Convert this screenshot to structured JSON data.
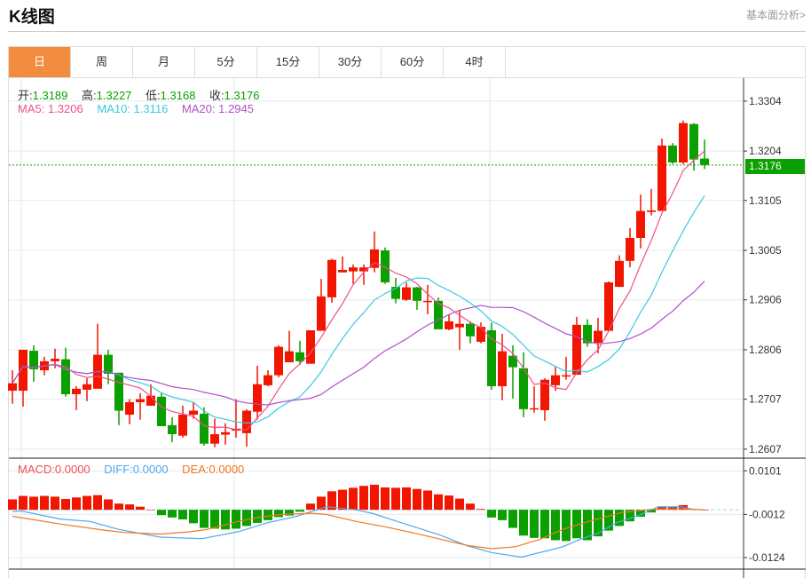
{
  "header": {
    "title": "K线图",
    "more_link": "基本面分析>"
  },
  "tabs": [
    {
      "label": "日",
      "active": true
    },
    {
      "label": "周",
      "active": false
    },
    {
      "label": "月",
      "active": false
    },
    {
      "label": "5分",
      "active": false
    },
    {
      "label": "15分",
      "active": false
    },
    {
      "label": "30分",
      "active": false
    },
    {
      "label": "60分",
      "active": false
    },
    {
      "label": "4时",
      "active": false
    }
  ],
  "ohlc_legend": {
    "open_label": "开:",
    "open": "1.3189",
    "high_label": "高:",
    "high": "1.3227",
    "low_label": "低:",
    "low": "1.3168",
    "close_label": "收:",
    "close": "1.3176"
  },
  "ma_legend": {
    "ma5_label": "MA5: ",
    "ma5": "1.3206",
    "ma10_label": "MA10: ",
    "ma10": "1.3116",
    "ma20_label": "MA20: ",
    "ma20": "1.2945"
  },
  "macd_legend": {
    "macd_label": "MACD:",
    "macd": "0.0000",
    "diff_label": "DIFF:",
    "diff": "0.0000",
    "dea_label": "DEA:",
    "dea": "0.0000"
  },
  "last_price": "1.3176",
  "colors": {
    "up": "#f21500",
    "down": "#0aa000",
    "ma5": "#f0508a",
    "ma10": "#3cc8e0",
    "ma20": "#b050c8",
    "diff": "#50a8f0",
    "dea": "#f07820",
    "accent": "#f28c3f"
  },
  "chart_data": [
    {
      "type": "candlestick",
      "title": "K线图",
      "y_ticks": [
        "1.3304",
        "1.3204",
        "1.3105",
        "1.3005",
        "1.2906",
        "1.2806",
        "1.2707",
        "1.2607"
      ],
      "ylim": [
        1.2589,
        1.335
      ],
      "ohlc": [
        [
          1.2724,
          1.2765,
          1.2698,
          1.2739
        ],
        [
          1.2724,
          1.2806,
          1.2692,
          1.2806
        ],
        [
          1.2804,
          1.2815,
          1.2742,
          1.2767
        ],
        [
          1.2765,
          1.2792,
          1.2755,
          1.2783
        ],
        [
          1.2783,
          1.2808,
          1.2769,
          1.2788
        ],
        [
          1.2787,
          1.281,
          1.2712,
          1.2717
        ],
        [
          1.2717,
          1.2733,
          1.2685,
          1.2728
        ],
        [
          1.2726,
          1.2749,
          1.2703,
          1.2737
        ],
        [
          1.2728,
          1.2858,
          1.2728,
          1.2796
        ],
        [
          1.2796,
          1.2806,
          1.2737,
          1.2758
        ],
        [
          1.276,
          1.276,
          1.2655,
          1.2684
        ],
        [
          1.2676,
          1.2707,
          1.2657,
          1.2701
        ],
        [
          1.2701,
          1.2719,
          1.2666,
          1.2707
        ],
        [
          1.2694,
          1.2737,
          1.2694,
          1.2714
        ],
        [
          1.2712,
          1.2719,
          1.2653,
          1.2653
        ],
        [
          1.2655,
          1.2671,
          1.2621,
          1.2637
        ],
        [
          1.2634,
          1.2694,
          1.263,
          1.2676
        ],
        [
          1.2676,
          1.27,
          1.2668,
          1.2684
        ],
        [
          1.2678,
          1.2691,
          1.2614,
          1.2618
        ],
        [
          1.2618,
          1.2668,
          1.2611,
          1.2637
        ],
        [
          1.2636,
          1.2659,
          1.2616,
          1.2641
        ],
        [
          1.2644,
          1.2707,
          1.263,
          1.2648
        ],
        [
          1.2639,
          1.2687,
          1.2612,
          1.2684
        ],
        [
          1.2682,
          1.2774,
          1.2666,
          1.2737
        ],
        [
          1.2735,
          1.2765,
          1.2733,
          1.2755
        ],
        [
          1.2755,
          1.2815,
          1.2751,
          1.2812
        ],
        [
          1.2781,
          1.2844,
          1.2781,
          1.2803
        ],
        [
          1.2801,
          1.2824,
          1.2776,
          1.2783
        ],
        [
          1.2778,
          1.2845,
          1.2778,
          1.2845
        ],
        [
          1.2844,
          1.2948,
          1.2844,
          1.2913
        ],
        [
          1.2911,
          1.2988,
          1.29,
          1.2986
        ],
        [
          1.2961,
          1.2993,
          1.2961,
          1.2966
        ],
        [
          1.2963,
          1.2977,
          1.2938,
          1.2971
        ],
        [
          1.2963,
          1.2977,
          1.2936,
          1.2971
        ],
        [
          1.297,
          1.3043,
          1.2961,
          1.3007
        ],
        [
          1.3005,
          1.3011,
          1.2938,
          1.2941
        ],
        [
          1.2932,
          1.295,
          1.2899,
          1.2908
        ],
        [
          1.2906,
          1.2941,
          1.2904,
          1.2931
        ],
        [
          1.2931,
          1.2932,
          1.2886,
          1.2904
        ],
        [
          1.2902,
          1.2936,
          1.2877,
          1.2904
        ],
        [
          1.2904,
          1.2911,
          1.2847,
          1.2847
        ],
        [
          1.2847,
          1.2876,
          1.2845,
          1.2863
        ],
        [
          1.2851,
          1.2886,
          1.2806,
          1.2858
        ],
        [
          1.2858,
          1.2863,
          1.2819,
          1.2833
        ],
        [
          1.2822,
          1.2861,
          1.2819,
          1.2852
        ],
        [
          1.2845,
          1.286,
          1.2726,
          1.2733
        ],
        [
          1.2733,
          1.2838,
          1.2705,
          1.2803
        ],
        [
          1.2794,
          1.2815,
          1.2708,
          1.2771
        ],
        [
          1.2769,
          1.2801,
          1.2671,
          1.2687
        ],
        [
          1.2687,
          1.2733,
          1.268,
          1.2689
        ],
        [
          1.2685,
          1.2749,
          1.2664,
          1.2746
        ],
        [
          1.2735,
          1.2772,
          1.2724,
          1.2755
        ],
        [
          1.2753,
          1.2792,
          1.2746,
          1.2755
        ],
        [
          1.2756,
          1.2872,
          1.2756,
          1.2856
        ],
        [
          1.2856,
          1.2867,
          1.2812,
          1.2819
        ],
        [
          1.282,
          1.287,
          1.2799,
          1.2844
        ],
        [
          1.2844,
          1.2943,
          1.2844,
          1.2941
        ],
        [
          1.2932,
          1.2995,
          1.2932,
          1.2984
        ],
        [
          1.2984,
          1.305,
          1.2971,
          1.303
        ],
        [
          1.303,
          1.3117,
          1.3009,
          1.3084
        ],
        [
          1.3082,
          1.3128,
          1.3075,
          1.3085
        ],
        [
          1.3084,
          1.3229,
          1.3084,
          1.3215
        ],
        [
          1.3215,
          1.322,
          1.3178,
          1.3181
        ],
        [
          1.3181,
          1.3265,
          1.3178,
          1.326
        ],
        [
          1.3258,
          1.326,
          1.3165,
          1.3187
        ],
        [
          1.3189,
          1.3227,
          1.3168,
          1.3176
        ]
      ],
      "ma_periods": [
        5,
        10,
        20
      ]
    },
    {
      "type": "bar",
      "title": "MACD",
      "y_ticks": [
        "0.0101",
        "-0.0012",
        "-0.0124"
      ],
      "ylim": [
        -0.0154,
        0.0134
      ],
      "histogram": [
        0.0027,
        0.0036,
        0.0034,
        0.0036,
        0.0034,
        0.0028,
        0.0032,
        0.0036,
        0.0038,
        0.0027,
        0.0016,
        0.0014,
        0.0008,
        0.0,
        -0.0014,
        -0.002,
        -0.0025,
        -0.0035,
        -0.0047,
        -0.0049,
        -0.0051,
        -0.0049,
        -0.0042,
        -0.0034,
        -0.0027,
        -0.0019,
        -0.0015,
        -0.0005,
        0.0016,
        0.0034,
        0.0048,
        0.0052,
        0.0057,
        0.0062,
        0.0065,
        0.0058,
        0.0057,
        0.0058,
        0.0054,
        0.005,
        0.004,
        0.0037,
        0.0029,
        0.0016,
        0.0002,
        -0.002,
        -0.0027,
        -0.0047,
        -0.0067,
        -0.0073,
        -0.0074,
        -0.0079,
        -0.0081,
        -0.0074,
        -0.0079,
        -0.0069,
        -0.0054,
        -0.0042,
        -0.003,
        -0.0018,
        -0.0007,
        0.0009,
        0.0007,
        0.0012,
        0.0001,
        0.0
      ],
      "diff": [
        [
          0,
          -0.0005
        ],
        [
          0.8,
          -0.0003
        ],
        [
          4.5,
          -0.0024
        ],
        [
          7.25,
          -0.003
        ],
        [
          10,
          -0.0051
        ],
        [
          13.9,
          -0.0071
        ],
        [
          17.8,
          -0.0075
        ],
        [
          21.2,
          -0.0057
        ],
        [
          23.9,
          -0.0034
        ],
        [
          26.7,
          -0.0017
        ],
        [
          29.5,
          0.0008
        ],
        [
          32.25,
          0.0
        ],
        [
          33.9,
          -0.001
        ],
        [
          35,
          -0.002
        ],
        [
          36.7,
          -0.0035
        ],
        [
          40,
          -0.0064
        ],
        [
          42.8,
          -0.0094
        ],
        [
          45,
          -0.0111
        ],
        [
          47.8,
          -0.0123
        ],
        [
          50,
          -0.0108
        ],
        [
          51.7,
          -0.0096
        ],
        [
          53.3,
          -0.0077
        ],
        [
          55,
          -0.0061
        ],
        [
          56.7,
          -0.0034
        ],
        [
          58.9,
          -0.0014
        ],
        [
          60.6,
          0.0007
        ],
        [
          62.8,
          0.0008
        ],
        [
          63.9,
          0.0001
        ],
        [
          65,
          0.0
        ]
      ],
      "dea": [
        [
          0,
          -0.0017
        ],
        [
          4.5,
          -0.0037
        ],
        [
          8.9,
          -0.0054
        ],
        [
          10.6,
          -0.0059
        ],
        [
          13.9,
          -0.0063
        ],
        [
          16.7,
          -0.0057
        ],
        [
          18.3,
          -0.0051
        ],
        [
          21.2,
          -0.003
        ],
        [
          23.3,
          -0.0019
        ],
        [
          25.3,
          -0.0012
        ],
        [
          28.1,
          -0.0009
        ],
        [
          29.5,
          -0.0012
        ],
        [
          32.25,
          -0.003
        ],
        [
          35,
          -0.0044
        ],
        [
          37.8,
          -0.0061
        ],
        [
          40.6,
          -0.0079
        ],
        [
          42.8,
          -0.0093
        ],
        [
          45,
          -0.0101
        ],
        [
          47.25,
          -0.0096
        ],
        [
          49.5,
          -0.0077
        ],
        [
          51.7,
          -0.0051
        ],
        [
          54.5,
          -0.0027
        ],
        [
          57.25,
          -0.0007
        ],
        [
          60,
          0.0001
        ],
        [
          62.8,
          0.0003
        ],
        [
          65,
          0.0
        ]
      ]
    }
  ]
}
